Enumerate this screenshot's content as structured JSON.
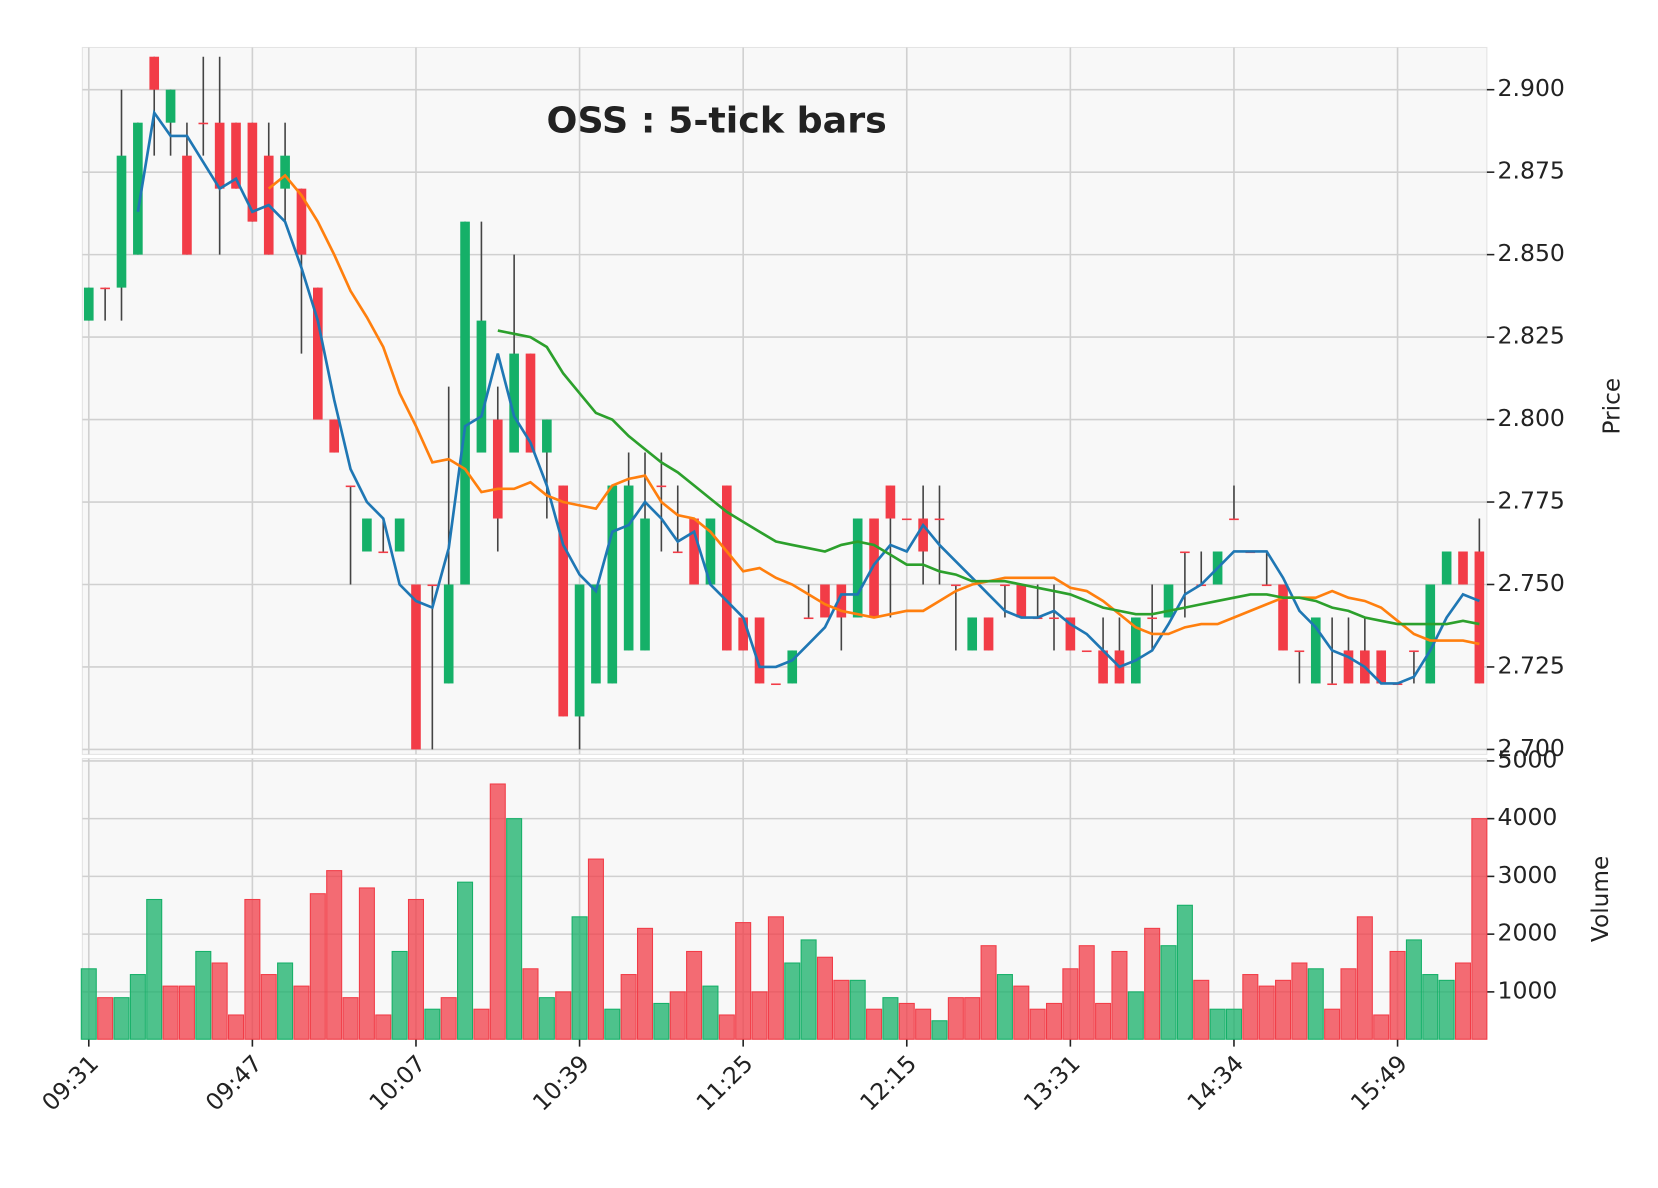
{
  "chart_data": {
    "type": "candlestick",
    "title": "OSS : 5-tick bars",
    "categories": [
      "09:31",
      null,
      null,
      null,
      null,
      null,
      null,
      null,
      null,
      null,
      "09:47",
      null,
      null,
      null,
      null,
      null,
      null,
      null,
      null,
      null,
      "10:07",
      null,
      null,
      null,
      null,
      null,
      null,
      null,
      null,
      null,
      "10:39",
      null,
      null,
      null,
      null,
      null,
      null,
      null,
      null,
      null,
      "11:25",
      null,
      null,
      null,
      null,
      null,
      null,
      null,
      null,
      null,
      "12:15",
      null,
      null,
      null,
      null,
      null,
      null,
      null,
      null,
      null,
      "13:31",
      null,
      null,
      null,
      null,
      null,
      null,
      null,
      null,
      null,
      "14:34",
      null,
      null,
      null,
      null,
      null,
      null,
      null,
      null,
      null,
      "15:49",
      null,
      null,
      null,
      null,
      null
    ],
    "open": [
      2.83,
      2.84,
      2.84,
      2.85,
      2.91,
      2.89,
      2.88,
      2.89,
      2.89,
      2.89,
      2.89,
      2.88,
      2.87,
      2.87,
      2.84,
      2.8,
      2.78,
      2.76,
      2.76,
      2.76,
      2.75,
      2.75,
      2.72,
      2.75,
      2.79,
      2.8,
      2.79,
      2.82,
      2.79,
      2.78,
      2.71,
      2.72,
      2.72,
      2.73,
      2.73,
      2.78,
      2.76,
      2.77,
      2.75,
      2.78,
      2.74,
      2.74,
      2.72,
      2.72,
      2.74,
      2.75,
      2.75,
      2.74,
      2.77,
      2.78,
      2.77,
      2.77,
      2.77,
      2.75,
      2.73,
      2.74,
      2.75,
      2.75,
      2.74,
      2.74,
      2.74,
      2.73,
      2.73,
      2.73,
      2.72,
      2.74,
      2.74,
      2.76,
      2.75,
      2.75,
      2.77,
      2.76,
      2.75,
      2.75,
      2.73,
      2.72,
      2.72,
      2.73,
      2.73,
      2.73,
      2.72,
      2.73,
      2.72,
      2.75,
      2.76,
      2.76
    ],
    "high": [
      2.84,
      2.84,
      2.9,
      2.89,
      2.91,
      2.9,
      2.89,
      2.91,
      2.91,
      2.89,
      2.89,
      2.89,
      2.89,
      2.87,
      2.84,
      2.8,
      2.78,
      2.77,
      2.77,
      2.77,
      2.75,
      2.75,
      2.81,
      2.86,
      2.86,
      2.81,
      2.85,
      2.82,
      2.8,
      2.78,
      2.75,
      2.75,
      2.78,
      2.79,
      2.79,
      2.79,
      2.78,
      2.77,
      2.77,
      2.78,
      2.74,
      2.74,
      2.72,
      2.73,
      2.75,
      2.75,
      2.75,
      2.77,
      2.77,
      2.78,
      2.77,
      2.78,
      2.78,
      2.75,
      2.74,
      2.74,
      2.75,
      2.75,
      2.75,
      2.75,
      2.74,
      2.73,
      2.74,
      2.74,
      2.74,
      2.75,
      2.75,
      2.76,
      2.76,
      2.76,
      2.78,
      2.76,
      2.76,
      2.75,
      2.73,
      2.74,
      2.74,
      2.74,
      2.74,
      2.73,
      2.72,
      2.73,
      2.75,
      2.76,
      2.76,
      2.77
    ],
    "low": [
      2.83,
      2.83,
      2.83,
      2.85,
      2.88,
      2.88,
      2.85,
      2.88,
      2.85,
      2.87,
      2.86,
      2.85,
      2.86,
      2.82,
      2.8,
      2.79,
      2.75,
      2.76,
      2.76,
      2.76,
      2.7,
      2.7,
      2.72,
      2.75,
      2.79,
      2.76,
      2.79,
      2.79,
      2.77,
      2.71,
      2.7,
      2.72,
      2.72,
      2.73,
      2.73,
      2.76,
      2.76,
      2.75,
      2.75,
      2.73,
      2.73,
      2.72,
      2.72,
      2.72,
      2.74,
      2.74,
      2.73,
      2.74,
      2.74,
      2.74,
      2.77,
      2.75,
      2.75,
      2.73,
      2.73,
      2.73,
      2.74,
      2.74,
      2.74,
      2.73,
      2.73,
      2.73,
      2.72,
      2.72,
      2.72,
      2.73,
      2.74,
      2.74,
      2.75,
      2.75,
      2.77,
      2.76,
      2.75,
      2.73,
      2.72,
      2.72,
      2.72,
      2.72,
      2.72,
      2.72,
      2.72,
      2.72,
      2.72,
      2.75,
      2.75,
      2.72
    ],
    "close": [
      2.84,
      2.84,
      2.88,
      2.89,
      2.9,
      2.9,
      2.85,
      2.89,
      2.87,
      2.87,
      2.86,
      2.85,
      2.88,
      2.85,
      2.8,
      2.79,
      2.78,
      2.77,
      2.76,
      2.77,
      2.7,
      2.75,
      2.75,
      2.86,
      2.83,
      2.77,
      2.82,
      2.79,
      2.8,
      2.71,
      2.75,
      2.75,
      2.78,
      2.78,
      2.77,
      2.78,
      2.76,
      2.75,
      2.77,
      2.73,
      2.73,
      2.72,
      2.72,
      2.73,
      2.74,
      2.74,
      2.74,
      2.77,
      2.74,
      2.77,
      2.77,
      2.76,
      2.77,
      2.75,
      2.74,
      2.73,
      2.75,
      2.74,
      2.74,
      2.74,
      2.73,
      2.73,
      2.72,
      2.72,
      2.74,
      2.74,
      2.75,
      2.76,
      2.75,
      2.76,
      2.77,
      2.76,
      2.75,
      2.73,
      2.73,
      2.74,
      2.72,
      2.72,
      2.72,
      2.72,
      2.72,
      2.73,
      2.75,
      2.76,
      2.75,
      2.72
    ],
    "volume": [
      1400,
      900,
      900,
      1300,
      2600,
      1100,
      1100,
      1700,
      1500,
      600,
      2600,
      1300,
      1500,
      1100,
      2700,
      3100,
      900,
      2800,
      600,
      1700,
      2600,
      700,
      900,
      2900,
      700,
      4600,
      4000,
      1400,
      900,
      1000,
      2300,
      3300,
      700,
      1300,
      2100,
      800,
      1000,
      1700,
      1100,
      600,
      2200,
      1000,
      2300,
      1500,
      1900,
      1600,
      1200,
      1200,
      700,
      900,
      800,
      700,
      500,
      900,
      900,
      1800,
      1300,
      1100,
      700,
      800,
      1400,
      1800,
      800,
      1700,
      1000,
      2100,
      1800,
      2500,
      1200,
      700,
      700,
      1300,
      1100,
      1200,
      1500,
      1400,
      700,
      1400,
      2300,
      600,
      1700,
      1900,
      1300,
      1200,
      1500,
      4000
    ],
    "up_color": "#15b068",
    "down_color": "#f23c47",
    "series": [
      {
        "color": "#1f77b4",
        "values": [
          null,
          null,
          null,
          2.863,
          2.893,
          2.886,
          2.886,
          2.878,
          2.87,
          2.873,
          2.863,
          2.865,
          2.86,
          2.846,
          2.83,
          2.806,
          2.785,
          2.775,
          2.77,
          2.75,
          2.745,
          2.743,
          2.761,
          2.798,
          2.801,
          2.82,
          2.801,
          2.793,
          2.78,
          2.762,
          2.753,
          2.748,
          2.766,
          2.768,
          2.775,
          2.77,
          2.763,
          2.766,
          2.75,
          2.745,
          2.74,
          2.725,
          2.725,
          2.727,
          2.732,
          2.737,
          2.747,
          2.747,
          2.756,
          2.762,
          2.76,
          2.768,
          2.762,
          2.757,
          2.752,
          2.747,
          2.742,
          2.74,
          2.74,
          2.742,
          2.738,
          2.735,
          2.73,
          2.725,
          2.727,
          2.73,
          2.738,
          2.747,
          2.75,
          2.755,
          2.76,
          2.76,
          2.76,
          2.752,
          2.742,
          2.737,
          2.73,
          2.728,
          2.725,
          2.72,
          2.72,
          2.722,
          2.73,
          2.74,
          2.747,
          2.745
        ]
      },
      {
        "color": "#ff7f0e",
        "values": [
          null,
          null,
          null,
          null,
          null,
          null,
          null,
          null,
          null,
          null,
          null,
          2.87,
          2.874,
          2.868,
          2.86,
          2.85,
          2.839,
          2.831,
          2.822,
          2.808,
          2.798,
          2.787,
          2.788,
          2.785,
          2.778,
          2.779,
          2.779,
          2.781,
          2.777,
          2.775,
          2.774,
          2.773,
          2.78,
          2.782,
          2.783,
          2.775,
          2.771,
          2.77,
          2.766,
          2.76,
          2.754,
          2.755,
          2.752,
          2.75,
          2.747,
          2.744,
          2.742,
          2.741,
          2.74,
          2.741,
          2.742,
          2.742,
          2.745,
          2.748,
          2.75,
          2.751,
          2.752,
          2.752,
          2.752,
          2.752,
          2.749,
          2.748,
          2.745,
          2.741,
          2.737,
          2.735,
          2.735,
          2.737,
          2.738,
          2.738,
          2.74,
          2.742,
          2.744,
          2.746,
          2.746,
          2.746,
          2.748,
          2.746,
          2.745,
          2.743,
          2.739,
          2.735,
          2.733,
          2.733,
          2.733,
          2.732
        ]
      },
      {
        "color": "#2ca02c",
        "values": [
          null,
          null,
          null,
          null,
          null,
          null,
          null,
          null,
          null,
          null,
          null,
          null,
          null,
          null,
          null,
          null,
          null,
          null,
          null,
          null,
          null,
          null,
          null,
          null,
          null,
          2.827,
          2.826,
          2.825,
          2.822,
          2.814,
          2.808,
          2.802,
          2.8,
          2.795,
          2.791,
          2.787,
          2.784,
          2.78,
          2.776,
          2.772,
          2.769,
          2.766,
          2.763,
          2.762,
          2.761,
          2.76,
          2.762,
          2.763,
          2.762,
          2.759,
          2.756,
          2.756,
          2.754,
          2.753,
          2.751,
          2.751,
          2.751,
          2.75,
          2.749,
          2.748,
          2.747,
          2.745,
          2.743,
          2.742,
          2.741,
          2.741,
          2.742,
          2.743,
          2.744,
          2.745,
          2.746,
          2.747,
          2.747,
          2.746,
          2.746,
          2.745,
          2.743,
          2.742,
          2.74,
          2.739,
          2.738,
          2.738,
          2.738,
          2.738,
          2.739,
          2.738
        ]
      }
    ],
    "ylim": [
      2.6985,
      2.9128
    ],
    "yticks": [
      {
        "value": 2.7,
        "label": "2.700"
      },
      2.725,
      {
        "value": 2.75,
        "label": "2.750"
      },
      2.775,
      {
        "value": 2.8,
        "label": "2.800"
      },
      2.825,
      {
        "value": 2.85,
        "label": "2.850"
      },
      2.875,
      {
        "value": 2.9,
        "label": "2.900"
      }
    ],
    "ylabel": "Price",
    "volume_ylim": [
      180,
      5040
    ],
    "volume_yticks": [
      1000,
      2000,
      3000,
      4000,
      5000
    ],
    "volume_ylabel": "Volume",
    "grid": true
  }
}
